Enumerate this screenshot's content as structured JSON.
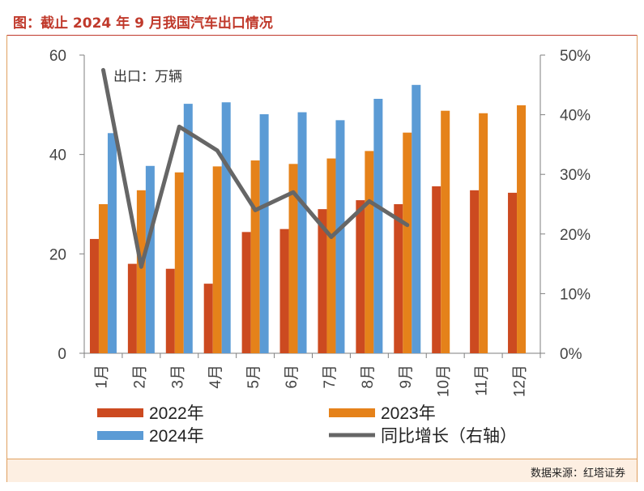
{
  "figure": {
    "title": "图：截止 2024 年 9 月我国汽车出口情况",
    "source": "数据来源：红塔证券"
  },
  "chart_data": {
    "type": "bar",
    "categories": [
      "1月",
      "2月",
      "3月",
      "4月",
      "5月",
      "6月",
      "7月",
      "8月",
      "9月",
      "10月",
      "11月",
      "12月"
    ],
    "series": [
      {
        "name": "2022年",
        "type": "bar",
        "axis": "left",
        "color": "#cc4a20",
        "values": [
          23,
          18,
          17,
          14,
          24.4,
          25,
          29,
          30.8,
          30,
          33.6,
          32.8,
          32.3
        ]
      },
      {
        "name": "2023年",
        "type": "bar",
        "axis": "left",
        "color": "#e5821a",
        "values": [
          30,
          32.8,
          36.4,
          37.6,
          38.8,
          38.1,
          39.2,
          40.7,
          44.4,
          48.8,
          48.3,
          49.9
        ]
      },
      {
        "name": "2024年",
        "type": "bar",
        "axis": "left",
        "color": "#5b9bd5",
        "values": [
          44.3,
          37.7,
          50.2,
          50.5,
          48.1,
          48.5,
          46.9,
          51.2,
          54,
          null,
          null,
          null
        ]
      },
      {
        "name": "同比增长（右轴）",
        "type": "line",
        "axis": "right",
        "color": "#666666",
        "values": [
          0.475,
          0.145,
          0.38,
          0.34,
          0.24,
          0.27,
          0.195,
          0.255,
          0.215,
          null,
          null,
          null
        ]
      }
    ],
    "annotation": "出口：万辆",
    "y_left": {
      "range": [
        0,
        60
      ],
      "ticks": [
        0,
        20,
        40,
        60
      ],
      "tick_labels": [
        "0",
        "20",
        "40",
        "60"
      ]
    },
    "y_right": {
      "range": [
        0,
        0.5
      ],
      "ticks": [
        0,
        0.1,
        0.2,
        0.3,
        0.4,
        0.5
      ],
      "tick_labels": [
        "0%",
        "10%",
        "20%",
        "30%",
        "40%",
        "50%"
      ]
    },
    "grid": false,
    "legend_position": "bottom"
  }
}
